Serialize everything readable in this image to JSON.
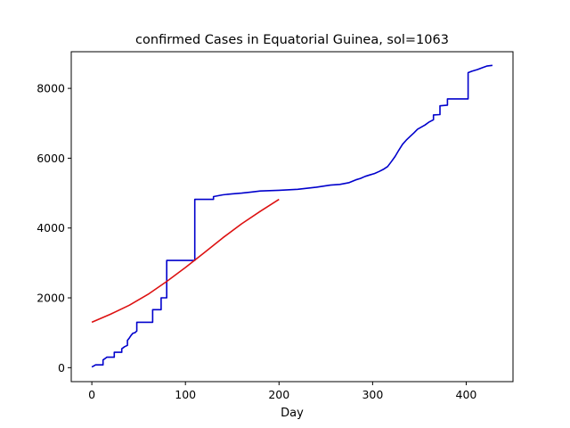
{
  "colors": {
    "background": "#ffffff",
    "axes": "#000000",
    "observed": "#0000cc",
    "fit": "#dd1111"
  },
  "chart_data": {
    "type": "line",
    "title": "confirmed Cases in Equatorial Guinea, sol=1063",
    "xlabel": "Day",
    "ylabel": "",
    "xlim": [
      -22,
      450
    ],
    "ylim": [
      -400,
      9050
    ],
    "xticks": [
      0,
      100,
      200,
      300,
      400
    ],
    "yticks": [
      0,
      2000,
      4000,
      6000,
      8000
    ],
    "grid": false,
    "series": [
      {
        "role": "observed",
        "points": [
          [
            0,
            20
          ],
          [
            2,
            50
          ],
          [
            4,
            80
          ],
          [
            12,
            80
          ],
          [
            12,
            220
          ],
          [
            14,
            260
          ],
          [
            16,
            300
          ],
          [
            24,
            300
          ],
          [
            24,
            440
          ],
          [
            32,
            440
          ],
          [
            32,
            540
          ],
          [
            35,
            600
          ],
          [
            38,
            640
          ],
          [
            38,
            780
          ],
          [
            40,
            850
          ],
          [
            42,
            930
          ],
          [
            44,
            990
          ],
          [
            46,
            1000
          ],
          [
            48,
            1050
          ],
          [
            48,
            1300
          ],
          [
            65,
            1300
          ],
          [
            65,
            1660
          ],
          [
            74,
            1660
          ],
          [
            74,
            2000
          ],
          [
            80,
            2000
          ],
          [
            80,
            3070
          ],
          [
            110,
            3070
          ],
          [
            110,
            4820
          ],
          [
            130,
            4820
          ],
          [
            130,
            4900
          ],
          [
            140,
            4950
          ],
          [
            150,
            4980
          ],
          [
            160,
            5000
          ],
          [
            170,
            5030
          ],
          [
            180,
            5060
          ],
          [
            200,
            5080
          ],
          [
            220,
            5110
          ],
          [
            240,
            5170
          ],
          [
            255,
            5230
          ],
          [
            265,
            5250
          ],
          [
            275,
            5300
          ],
          [
            282,
            5380
          ],
          [
            287,
            5420
          ],
          [
            292,
            5480
          ],
          [
            297,
            5520
          ],
          [
            302,
            5560
          ],
          [
            307,
            5620
          ],
          [
            312,
            5690
          ],
          [
            316,
            5760
          ],
          [
            320,
            5900
          ],
          [
            324,
            6050
          ],
          [
            328,
            6230
          ],
          [
            332,
            6400
          ],
          [
            336,
            6520
          ],
          [
            340,
            6620
          ],
          [
            344,
            6720
          ],
          [
            348,
            6830
          ],
          [
            352,
            6890
          ],
          [
            356,
            6950
          ],
          [
            360,
            7030
          ],
          [
            365,
            7100
          ],
          [
            365,
            7240
          ],
          [
            372,
            7250
          ],
          [
            372,
            7500
          ],
          [
            380,
            7520
          ],
          [
            380,
            7700
          ],
          [
            402,
            7700
          ],
          [
            402,
            8450
          ],
          [
            406,
            8490
          ],
          [
            412,
            8540
          ],
          [
            418,
            8600
          ],
          [
            422,
            8640
          ],
          [
            428,
            8660
          ]
        ]
      },
      {
        "role": "fit",
        "points": [
          [
            0,
            1300
          ],
          [
            20,
            1530
          ],
          [
            40,
            1790
          ],
          [
            60,
            2100
          ],
          [
            80,
            2470
          ],
          [
            100,
            2870
          ],
          [
            120,
            3290
          ],
          [
            140,
            3720
          ],
          [
            160,
            4120
          ],
          [
            180,
            4480
          ],
          [
            200,
            4820
          ]
        ]
      }
    ]
  }
}
